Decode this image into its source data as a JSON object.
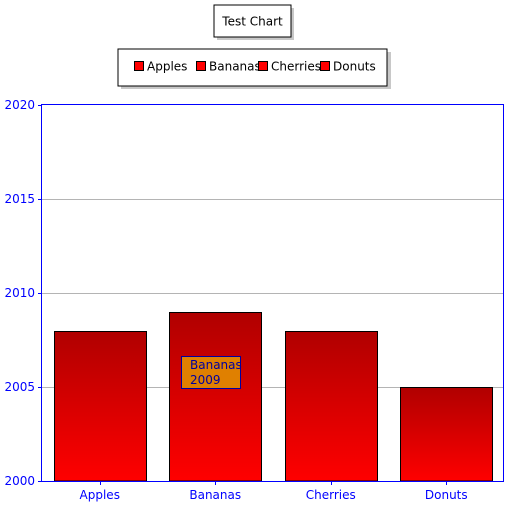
{
  "chart_data": {
    "type": "bar",
    "title": "Test Chart",
    "xlabel": "",
    "ylabel": "",
    "categories": [
      "Apples",
      "Bananas",
      "Cherries",
      "Donuts"
    ],
    "series": [
      {
        "name": "",
        "values": [
          2008,
          2009,
          2008,
          2005
        ]
      }
    ],
    "legend": [
      "Apples",
      "Bananas",
      "Cherries",
      "Donuts"
    ],
    "legend_position": "top-center",
    "ylim": [
      2000,
      2020
    ],
    "yticks": [
      "2000",
      "2005",
      "2010",
      "2015",
      "2020"
    ],
    "grid": true,
    "tooltip": {
      "category": "Bananas",
      "value": "2009"
    }
  },
  "colors": {
    "axis": "#0000ff",
    "grid": "#b4b4b4",
    "bar_top": "#b00000",
    "bar_bottom": "#ff0000",
    "tooltip_bg": "#e08000",
    "tooltip_text": "#0000a0"
  }
}
